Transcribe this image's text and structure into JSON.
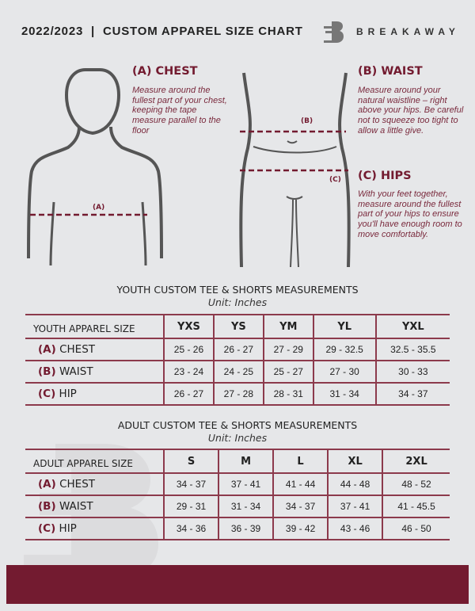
{
  "header": {
    "title": "2022/2023  |  CUSTOM APPAREL SIZE CHART",
    "brand": "BREAKAWAY"
  },
  "guide": {
    "chest": {
      "heading": "(A) CHEST",
      "desc": "Measure around the fullest part of your chest, keeping the tape measure parallel to the floor",
      "marker": "(A)"
    },
    "waist": {
      "heading": "(B) WAIST",
      "desc": "Measure around your natural waistline – right above your hips. Be careful not to squeeze too tight to allow a little give.",
      "marker": "(B)"
    },
    "hips": {
      "heading": "(C) HIPS",
      "desc": "With your feet together, measure around the fullest part of your hips to ensure you'll have enough room to move comfortably.",
      "marker": "(C)"
    }
  },
  "youth": {
    "title": "YOUTH CUSTOM TEE & SHORTS MEASUREMENTS",
    "unit": "Unit: Inches",
    "size_label": "YOUTH APPAREL SIZE",
    "sizes": [
      "YXS",
      "YS",
      "YM",
      "YL",
      "YXL"
    ],
    "rows": [
      {
        "letter": "(A)",
        "name": "CHEST",
        "values": [
          "25 - 26",
          "26 - 27",
          "27 - 29",
          "29 - 32.5",
          "32.5 - 35.5"
        ]
      },
      {
        "letter": "(B)",
        "name": "WAIST",
        "values": [
          "23 - 24",
          "24 - 25",
          "25 - 27",
          "27 - 30",
          "30 - 33"
        ]
      },
      {
        "letter": "(C)",
        "name": "HIP",
        "values": [
          "26 - 27",
          "27 - 28",
          "28 - 31",
          "31 - 34",
          "34 - 37"
        ]
      }
    ]
  },
  "adult": {
    "title": "ADULT CUSTOM TEE & SHORTS MEASUREMENTS",
    "unit": "Unit: Inches",
    "size_label": "ADULT APPAREL SIZE",
    "sizes": [
      "S",
      "M",
      "L",
      "XL",
      "2XL"
    ],
    "rows": [
      {
        "letter": "(A)",
        "name": "CHEST",
        "values": [
          "34 - 37",
          "37 - 41",
          "41 - 44",
          "44 - 48",
          "48 - 52"
        ]
      },
      {
        "letter": "(B)",
        "name": "WAIST",
        "values": [
          "29 - 31",
          "31 - 34",
          "34 - 37",
          "37 - 41",
          "41 - 45.5"
        ]
      },
      {
        "letter": "(C)",
        "name": "HIP",
        "values": [
          "34 - 36",
          "36 - 39",
          "39 - 42",
          "43 - 46",
          "46 - 50"
        ]
      }
    ]
  },
  "colors": {
    "accent": "#731b30",
    "background": "#e6e7e9"
  }
}
